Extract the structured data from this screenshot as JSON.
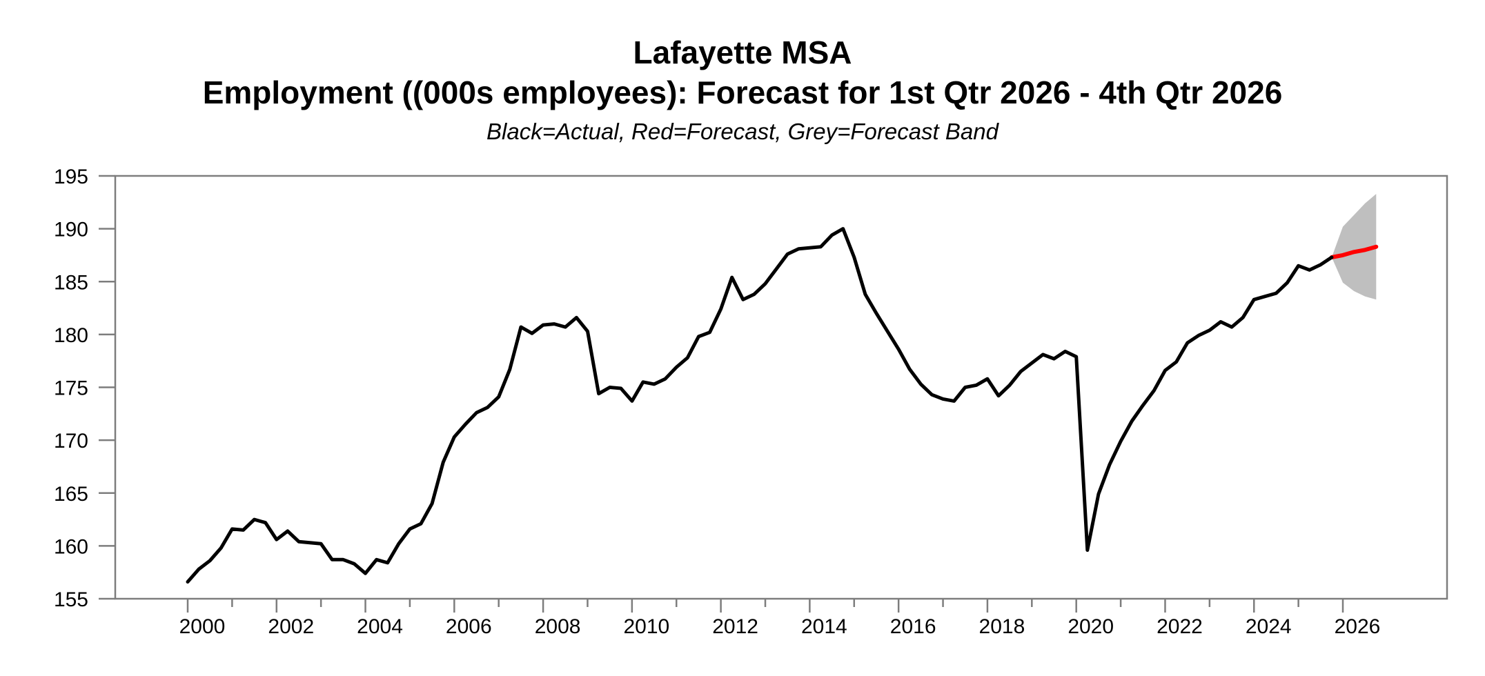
{
  "title": {
    "line1": "Lafayette MSA",
    "line2": "Employment ((000s employees): Forecast for 1st Qtr 2026 - 4th Qtr 2026"
  },
  "subtitle": "Black=Actual, Red=Forecast, Grey=Forecast Band",
  "chart_data": {
    "type": "line",
    "frequency": "quarterly",
    "ylabel": "",
    "xlabel": "",
    "ylim": [
      155,
      195
    ],
    "xlim_years": [
      1998.37,
      2028.35
    ],
    "grid": "off",
    "legend_note": "Black=Actual, Red=Forecast, Grey=Forecast Band",
    "yaxis": {
      "ticks": [
        155,
        160,
        165,
        170,
        175,
        180,
        185,
        190,
        195
      ]
    },
    "xaxis": {
      "tick_years": [
        2000,
        2001,
        2002,
        2003,
        2004,
        2005,
        2006,
        2007,
        2008,
        2009,
        2010,
        2011,
        2012,
        2013,
        2014,
        2015,
        2016,
        2017,
        2018,
        2019,
        2020,
        2021,
        2022,
        2023,
        2024,
        2025,
        2026
      ],
      "labeled_years": [
        2000,
        2002,
        2004,
        2006,
        2008,
        2010,
        2012,
        2014,
        2016,
        2018,
        2020,
        2022,
        2024,
        2026
      ]
    },
    "series": [
      {
        "name": "Actual",
        "color": "#000000",
        "start": "2000Q1",
        "values": [
          156.6,
          157.8,
          158.6,
          159.8,
          161.6,
          161.5,
          162.5,
          162.2,
          160.6,
          161.4,
          160.4,
          160.3,
          160.2,
          158.7,
          158.7,
          158.3,
          157.4,
          158.7,
          158.4,
          160.2,
          161.6,
          162.1,
          164.0,
          167.9,
          170.3,
          171.5,
          172.6,
          173.1,
          174.1,
          176.7,
          180.7,
          180.1,
          180.9,
          181.0,
          180.7,
          181.6,
          180.3,
          174.4,
          175.0,
          174.9,
          173.7,
          175.5,
          175.3,
          175.8,
          176.9,
          177.8,
          179.8,
          180.2,
          182.4,
          185.4,
          183.3,
          183.8,
          184.8,
          186.2,
          187.6,
          188.1,
          188.2,
          188.3,
          189.4,
          190.0,
          187.3,
          183.8,
          182.0,
          180.3,
          178.6,
          176.7,
          175.3,
          174.3,
          173.9,
          173.7,
          175.0,
          175.2,
          175.8,
          174.2,
          175.2,
          176.5,
          177.3,
          178.1,
          177.7,
          178.4,
          177.9,
          159.6,
          164.9,
          167.7,
          169.9,
          171.8,
          173.3,
          174.7,
          176.6,
          177.4,
          179.2,
          179.9,
          180.4,
          181.2,
          180.7,
          181.6,
          183.3,
          183.6,
          183.9,
          184.9,
          186.5,
          186.1,
          186.6,
          187.3
        ]
      },
      {
        "name": "Forecast",
        "color": "#ff0000",
        "start": "2025Q4",
        "values": [
          187.3,
          187.5,
          187.8,
          188.0,
          188.3
        ]
      }
    ],
    "band": {
      "name": "Forecast Band",
      "color": "#bfbfbf",
      "start": "2025Q4",
      "upper": [
        187.3,
        190.2,
        191.3,
        192.4,
        193.3
      ],
      "lower": [
        187.3,
        184.9,
        184.1,
        183.6,
        183.3
      ]
    }
  }
}
